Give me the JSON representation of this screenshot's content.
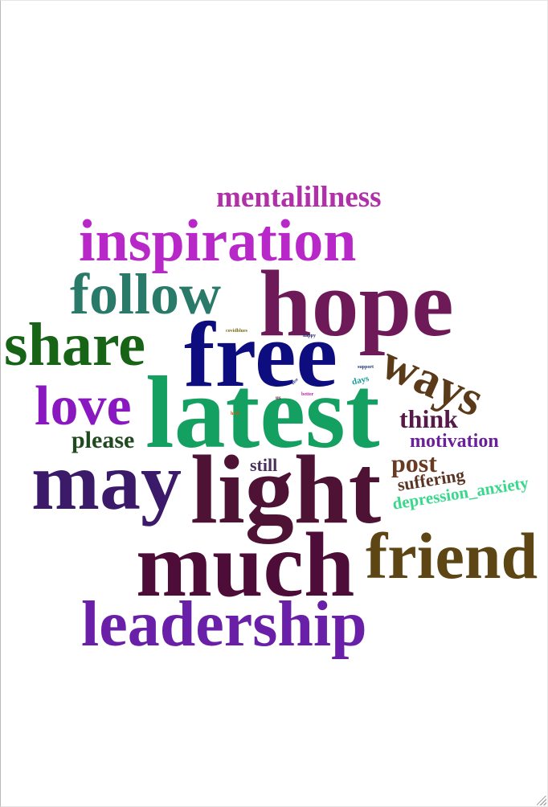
{
  "words": {
    "mentalillness": {
      "text": "mentalillness",
      "color": "#b030a8"
    },
    "inspiration": {
      "text": "inspiration",
      "color": "#b828c8"
    },
    "follow": {
      "text": "follow",
      "color": "#2a7a6a"
    },
    "hope": {
      "text": "hope",
      "color": "#6e1a58"
    },
    "share": {
      "text": "share",
      "color": "#176417"
    },
    "free": {
      "text": "free",
      "color": "#0d0d80"
    },
    "ways": {
      "text": "ways",
      "color": "#5a3a18"
    },
    "love": {
      "text": "love",
      "color": "#8a18c0"
    },
    "latest": {
      "text": "latest",
      "color": "#13a060"
    },
    "think": {
      "text": "think",
      "color": "#561a48"
    },
    "please": {
      "text": "please",
      "color": "#1e4a1e"
    },
    "motivation": {
      "text": "motivation",
      "color": "#6a209a"
    },
    "may": {
      "text": "may",
      "color": "#3b1a6a"
    },
    "still": {
      "text": "still",
      "color": "#4a3058"
    },
    "post": {
      "text": "post",
      "color": "#6a3a22"
    },
    "light": {
      "text": "light",
      "color": "#4e1234"
    },
    "suffering": {
      "text": "suffering",
      "color": "#5c3424"
    },
    "depression_anxiety": {
      "text": "depression_anxiety",
      "color": "#3ad88c"
    },
    "friend": {
      "text": "friend",
      "color": "#5e4614"
    },
    "much": {
      "text": "much",
      "color": "#4e0c38"
    },
    "leadership": {
      "text": "leadership",
      "color": "#6a1fa8"
    },
    "covidblues": {
      "text": "covidblues",
      "color": "#7a6a12"
    },
    "happy": {
      "text": "happy",
      "color": "#2a2a6a"
    },
    "support": {
      "text": "support",
      "color": "#1a3a7a"
    },
    "days": {
      "text": "days",
      "color": "#1a9a9a"
    },
    "better": {
      "text": "better",
      "color": "#c018a8"
    },
    "us": {
      "text": "us",
      "color": "#6a1a3a"
    },
    "heal": {
      "text": "heal",
      "color": "#c85a12"
    },
    "else": {
      "text": "else",
      "color": "#3a3a8a"
    }
  }
}
